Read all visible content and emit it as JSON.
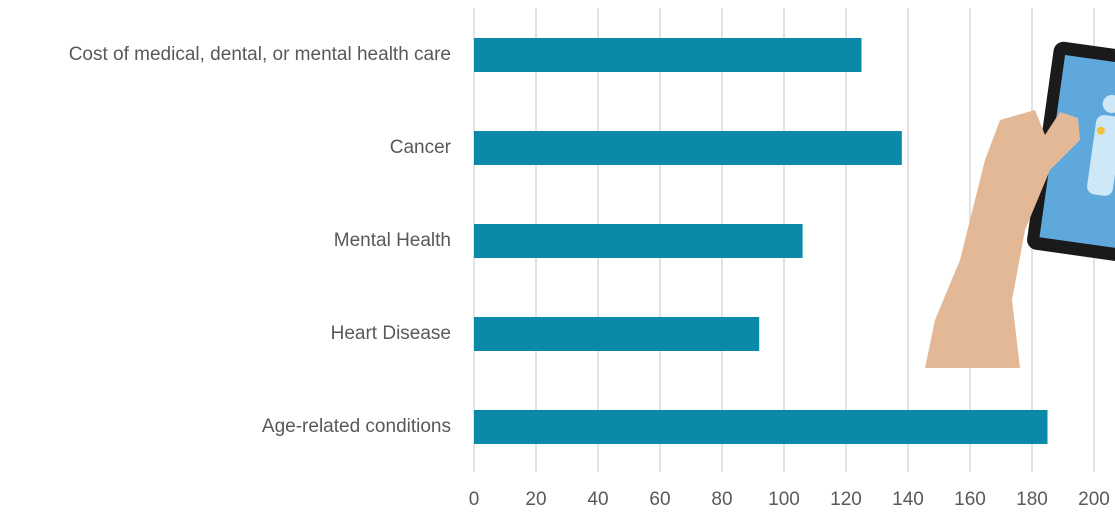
{
  "chart_data": {
    "type": "bar",
    "orientation": "horizontal",
    "categories": [
      "Cost of medical, dental, or mental health care",
      "Cancer",
      "Mental Health",
      "Heart Disease",
      "Age-related conditions"
    ],
    "values": [
      125,
      138,
      106,
      92,
      185
    ],
    "color": "#0a8aa8",
    "xlim": [
      0,
      200
    ],
    "xticks": [
      0,
      20,
      40,
      60,
      80,
      100,
      120,
      140,
      160,
      180,
      200
    ],
    "grid": true
  }
}
